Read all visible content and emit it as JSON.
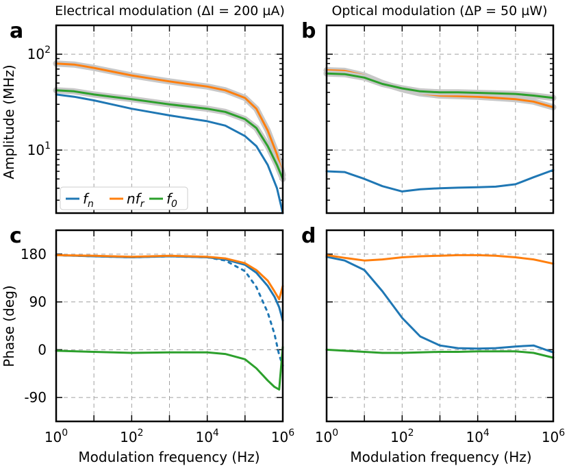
{
  "figure": {
    "left_title": "Electrical modulation (ΔI = 200 µA)",
    "right_title": "Optical modulation (ΔP = 50 µW)",
    "x_axis_label": "Modulation frequency (Hz)",
    "amplitude_axis_label": "Amplitude (MHz)",
    "phase_axis_label": "Phase (deg)",
    "panel_letters": [
      "a",
      "b",
      "c",
      "d"
    ],
    "x_tick_labels": [
      {
        "base": "10",
        "exp": "0"
      },
      {
        "base": "10",
        "exp": "2"
      },
      {
        "base": "10",
        "exp": "4"
      },
      {
        "base": "10",
        "exp": "6"
      }
    ],
    "amplitude_tick_labels": [
      {
        "base": "10",
        "exp": "1"
      },
      {
        "base": "10",
        "exp": "2"
      }
    ],
    "phase_tick_labels": [
      "180",
      "90",
      "0",
      "-90"
    ],
    "legend": [
      {
        "name": "fn",
        "main": "f",
        "sub": "n",
        "color": "#1f77b4"
      },
      {
        "name": "nfr",
        "main": "nf",
        "sub": "r",
        "color": "#ff7f0e"
      },
      {
        "name": "f0",
        "main": "f",
        "sub": "0",
        "color": "#2ca02c"
      }
    ],
    "colors": {
      "fn": "#1f77b4",
      "nfr": "#ff7f0e",
      "f0": "#2ca02c",
      "band": "#c8c8c8"
    }
  },
  "chart_data": [
    {
      "panel": "a",
      "type": "line",
      "title": "Electrical modulation (ΔI = 200 µA)",
      "xlabel": "",
      "ylabel": "Amplitude (MHz)",
      "xscale": "log",
      "yscale": "log",
      "xlim": [
        1,
        1000000
      ],
      "ylim": [
        2.2,
        200
      ],
      "x": [
        1,
        3,
        10,
        30,
        100,
        300,
        1000,
        3000,
        10000,
        30000,
        100000,
        200000,
        400000,
        700000,
        1000000
      ],
      "series": [
        {
          "name": "fn",
          "values": [
            38,
            36,
            33,
            30,
            27,
            25,
            23,
            21.5,
            20,
            18,
            14,
            11,
            7,
            4,
            2.2
          ]
        },
        {
          "name": "nfr",
          "values": [
            80,
            78,
            72,
            66,
            60,
            56,
            52,
            49,
            46,
            42,
            35,
            27,
            16,
            9,
            5.5
          ]
        },
        {
          "name": "f0",
          "values": [
            42,
            41,
            38,
            36,
            34,
            32,
            30,
            28.5,
            27,
            25,
            21,
            17,
            11,
            7,
            5
          ]
        }
      ]
    },
    {
      "panel": "b",
      "type": "line",
      "title": "Optical modulation (ΔP = 50 µW)",
      "xlabel": "",
      "ylabel": "",
      "xscale": "log",
      "yscale": "log",
      "xlim": [
        1,
        1000000
      ],
      "ylim": [
        2.2,
        200
      ],
      "x": [
        1,
        3,
        10,
        30,
        100,
        300,
        1000,
        3000,
        10000,
        30000,
        100000,
        300000,
        1000000
      ],
      "series": [
        {
          "name": "fn",
          "values": [
            6,
            5.9,
            5,
            4.2,
            3.7,
            3.9,
            4,
            4.05,
            4.1,
            4.15,
            4.4,
            5.2,
            6.2
          ]
        },
        {
          "name": "nfr",
          "values": [
            68,
            67,
            60,
            50,
            43,
            39,
            37,
            36.5,
            36,
            35,
            34,
            32,
            28
          ]
        },
        {
          "name": "f0",
          "values": [
            63,
            62,
            57,
            49,
            44,
            41,
            40,
            40,
            39.5,
            39,
            38.5,
            37,
            35
          ]
        }
      ]
    },
    {
      "panel": "c",
      "type": "line",
      "title": "",
      "xlabel": "Modulation frequency (Hz)",
      "ylabel": "Phase (deg)",
      "xscale": "log",
      "xlim": [
        1,
        1000000
      ],
      "ylim": [
        -135,
        225
      ],
      "yticks": [
        -90,
        0,
        90,
        180
      ],
      "x": [
        1,
        10,
        100,
        1000,
        10000,
        30000,
        100000,
        200000,
        400000,
        600000,
        800000,
        1000000
      ],
      "series": [
        {
          "name": "fn",
          "values": [
            178,
            176,
            174,
            176,
            174,
            170,
            160,
            145,
            120,
            100,
            80,
            55
          ]
        },
        {
          "name": "fn (dashed)",
          "style": "dashed",
          "values": [
            178,
            176,
            174,
            176,
            174,
            168,
            148,
            118,
            70,
            30,
            -10,
            -30
          ]
        },
        {
          "name": "nfr",
          "values": [
            178,
            177,
            175,
            177,
            175,
            172,
            163,
            150,
            130,
            110,
            95,
            120
          ]
        },
        {
          "name": "f0",
          "values": [
            -2,
            -4,
            -6,
            -5,
            -5,
            -8,
            -18,
            -35,
            -58,
            -70,
            -75,
            5
          ]
        }
      ]
    },
    {
      "panel": "d",
      "type": "line",
      "title": "",
      "xlabel": "Modulation frequency (Hz)",
      "ylabel": "",
      "xscale": "log",
      "xlim": [
        1,
        1000000
      ],
      "ylim": [
        -135,
        225
      ],
      "yticks": [
        -90,
        0,
        90,
        180
      ],
      "x": [
        1,
        3,
        10,
        30,
        100,
        300,
        1000,
        3000,
        10000,
        30000,
        100000,
        300000,
        1000000
      ],
      "series": [
        {
          "name": "fn",
          "values": [
            175,
            168,
            150,
            110,
            60,
            25,
            8,
            3,
            2,
            3,
            6,
            8,
            -5
          ]
        },
        {
          "name": "nfr",
          "values": [
            178,
            173,
            168,
            170,
            174,
            176,
            177,
            178,
            178,
            177,
            174,
            170,
            162
          ]
        },
        {
          "name": "f0",
          "values": [
            0,
            -2,
            -4,
            -6,
            -6,
            -5,
            -4,
            -4,
            -3,
            -3,
            -3,
            -6,
            -15
          ]
        }
      ]
    }
  ]
}
